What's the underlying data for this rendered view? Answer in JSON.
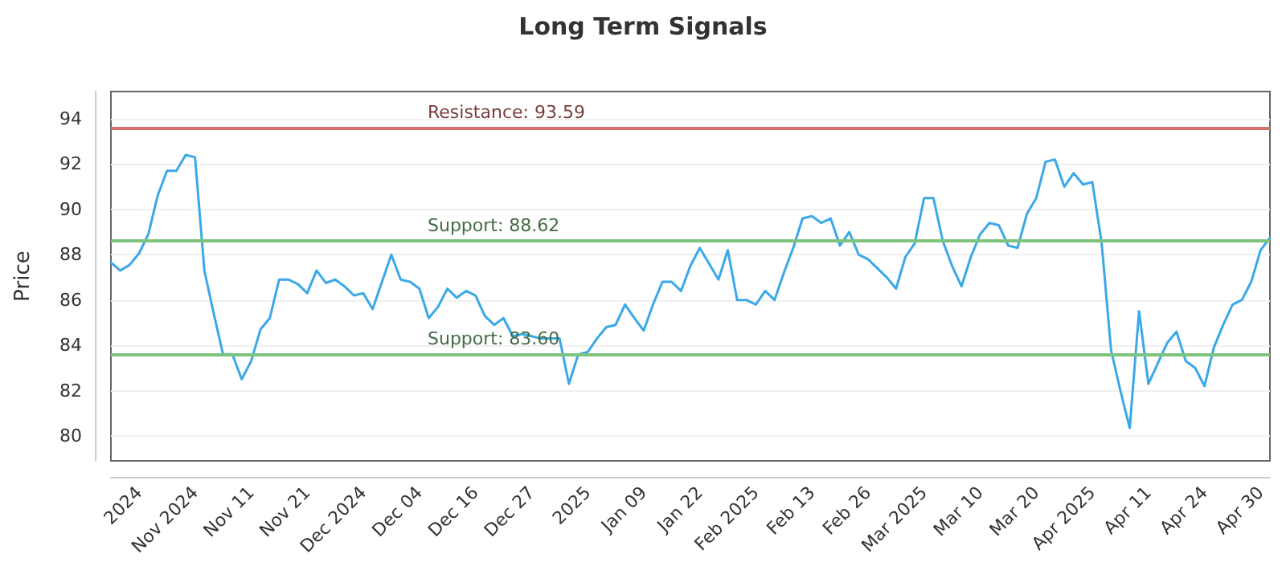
{
  "chart_data": {
    "type": "line",
    "title": "Long Term Signals",
    "ylabel": "Price",
    "categories": [
      null,
      null,
      null,
      "2024",
      null,
      null,
      null,
      null,
      null,
      "Nov 2024",
      null,
      null,
      null,
      null,
      null,
      "Nov 11",
      null,
      null,
      null,
      null,
      null,
      "Nov 21",
      null,
      null,
      null,
      null,
      null,
      "Dec 2024",
      null,
      null,
      null,
      null,
      null,
      "Dec 04",
      null,
      null,
      null,
      null,
      null,
      "Dec 16",
      null,
      null,
      null,
      null,
      null,
      "Dec 27",
      null,
      null,
      null,
      null,
      null,
      "2025",
      null,
      null,
      null,
      null,
      null,
      "Jan 09",
      null,
      null,
      null,
      null,
      null,
      "Jan 22",
      null,
      null,
      null,
      null,
      null,
      "Feb 2025",
      null,
      null,
      null,
      null,
      null,
      "Feb 13",
      null,
      null,
      null,
      null,
      null,
      "Feb 26",
      null,
      null,
      null,
      null,
      null,
      "Mar 2025",
      null,
      null,
      null,
      null,
      null,
      "Mar 10",
      null,
      null,
      null,
      null,
      null,
      "Mar 20",
      null,
      null,
      null,
      null,
      null,
      "Apr 2025",
      null,
      null,
      null,
      null,
      null,
      "Apr 11",
      null,
      null,
      null,
      null,
      null,
      "Apr 24",
      null,
      null,
      null,
      null,
      null,
      "Apr 30",
      null
    ],
    "series": [
      {
        "color": "#3ba8e8",
        "values": [
          87.65,
          87.3,
          87.55,
          88.05,
          88.9,
          90.6,
          91.7,
          91.7,
          92.4,
          92.3,
          87.3,
          85.4,
          83.6,
          83.6,
          82.5,
          83.3,
          84.7,
          85.2,
          86.9,
          86.9,
          86.7,
          86.3,
          87.3,
          86.75,
          86.9,
          86.6,
          86.2,
          86.3,
          85.6,
          86.8,
          88.0,
          86.9,
          86.8,
          86.5,
          85.2,
          85.7,
          86.5,
          86.1,
          86.4,
          86.2,
          85.3,
          84.9,
          85.2,
          84.4,
          84.5,
          84.4,
          84.3,
          84.3,
          84.3,
          82.3,
          83.6,
          83.7,
          84.3,
          84.8,
          84.9,
          85.8,
          85.2,
          84.65,
          85.8,
          86.8,
          86.8,
          86.4,
          87.5,
          88.3,
          87.6,
          86.9,
          88.2,
          86.0,
          86.0,
          85.8,
          86.4,
          86.0,
          87.2,
          88.3,
          89.6,
          89.7,
          89.4,
          89.6,
          88.4,
          89.0,
          88.0,
          87.8,
          87.4,
          87.0,
          86.5,
          87.9,
          88.5,
          90.5,
          90.5,
          88.6,
          87.5,
          86.6,
          87.9,
          88.9,
          89.4,
          89.3,
          88.4,
          88.3,
          89.8,
          90.5,
          92.1,
          92.2,
          91.0,
          91.6,
          91.1,
          91.2,
          88.5,
          83.8,
          82.0,
          80.35,
          85.5,
          82.3,
          83.2,
          84.1,
          84.6,
          83.3,
          83.0,
          82.2,
          83.9,
          84.9,
          85.8,
          86.0,
          86.8,
          88.2,
          88.75
        ]
      }
    ],
    "ylim": [
      78.9,
      95.2
    ],
    "yticks": [
      80,
      82,
      84,
      86,
      88,
      90,
      92,
      94
    ],
    "grid": "y",
    "marker": "none",
    "line_style": "solid",
    "ref_lines": [
      {
        "axis": "y",
        "value": 93.59,
        "label": "Resistance: 93.59",
        "color": "#d9726f"
      },
      {
        "axis": "y",
        "value": 88.62,
        "label": "Support: 88.62",
        "color": "#7cc47c"
      },
      {
        "axis": "y",
        "value": 83.6,
        "label": "Support: 83.60",
        "color": "#7cc47c"
      }
    ]
  }
}
